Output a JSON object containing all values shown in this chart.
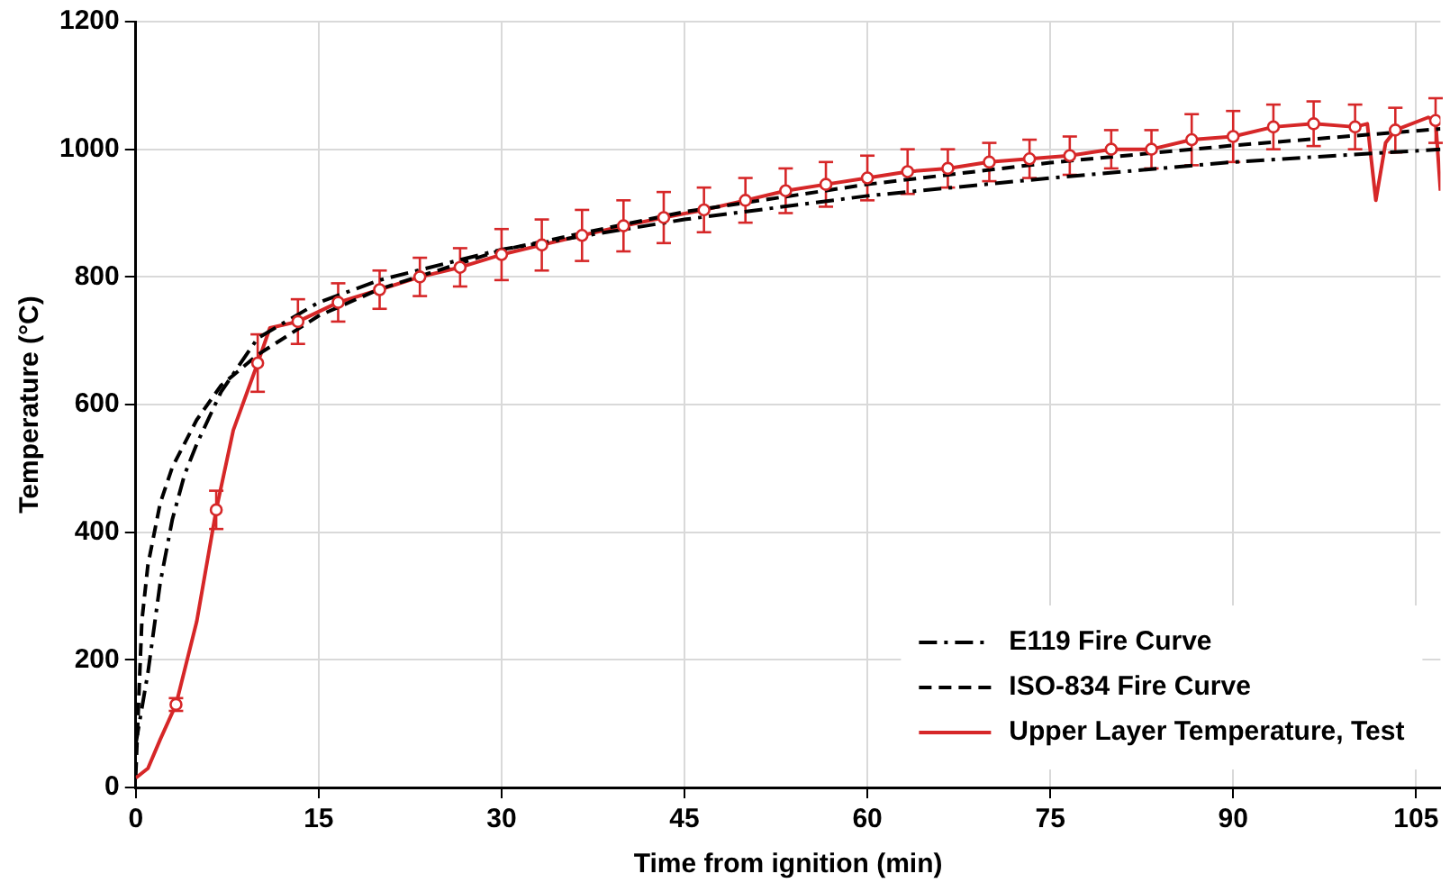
{
  "chart_data": {
    "type": "line",
    "xlabel": "Time from ignition (min)",
    "ylabel": "Temperature (°C)",
    "xlim": [
      0,
      107
    ],
    "xticks": [
      0,
      15,
      30,
      45,
      60,
      75,
      90,
      105
    ],
    "ylim": [
      0,
      1200
    ],
    "yticks": [
      0,
      200,
      400,
      600,
      800,
      1000,
      1200
    ],
    "grid": true,
    "legend": "bottom right",
    "marker": "none",
    "series": [
      {
        "name": "E119 Fire Curve",
        "color": "#000000",
        "line_style": "dashdot",
        "x": [
          0,
          1,
          2,
          3,
          4,
          5,
          7,
          10,
          15,
          20,
          30,
          45,
          60,
          75,
          90,
          107
        ],
        "values": [
          68,
          180,
          320,
          420,
          490,
          538,
          620,
          704,
          760,
          795,
          843,
          890,
          927,
          955,
          980,
          1000
        ]
      },
      {
        "name": "ISO-834 Fire Curve",
        "color": "#000000",
        "line_style": "dashed",
        "x": [
          0,
          0.5,
          1,
          2,
          3,
          5,
          7,
          10,
          15,
          20,
          30,
          45,
          60,
          75,
          90,
          107
        ],
        "values": [
          20,
          261,
          349,
          445,
          502,
          576,
          630,
          678,
          739,
          781,
          842,
          902,
          945,
          979,
          1006,
          1032
        ]
      },
      {
        "name": "Upper Layer Temperature, Test",
        "color": "#d62728",
        "line_style": "solid",
        "x": [
          0,
          1,
          2,
          3.3,
          5,
          6.6,
          8,
          10,
          11,
          13.3,
          16.6,
          20,
          23.3,
          26.6,
          30,
          33.3,
          36.6,
          40,
          43.3,
          46.6,
          50,
          53.3,
          56.6,
          60,
          63.3,
          66.6,
          70,
          73.3,
          76.6,
          80,
          83.3,
          86.6,
          90,
          93.3,
          96.6,
          100,
          101,
          101.7,
          102.5,
          103.3,
          106,
          106.6,
          107
        ],
        "values": [
          15,
          30,
          75,
          130,
          260,
          435,
          560,
          665,
          720,
          730,
          760,
          780,
          800,
          815,
          835,
          850,
          865,
          880,
          893,
          905,
          920,
          935,
          945,
          955,
          965,
          970,
          980,
          985,
          990,
          1000,
          1000,
          1015,
          1020,
          1035,
          1040,
          1035,
          1040,
          920,
          1010,
          1030,
          1050,
          1045,
          935
        ]
      },
      {
        "type": "scatter",
        "color": "#d62728",
        "marker": "circle",
        "x": [
          3.3,
          6.6,
          10,
          13.3,
          16.6,
          20,
          23.3,
          26.6,
          30,
          33.3,
          36.6,
          40,
          43.3,
          46.6,
          50,
          53.3,
          56.6,
          60,
          63.3,
          66.6,
          70,
          73.3,
          76.6,
          80,
          83.3,
          86.6,
          90,
          93.3,
          96.6,
          100,
          103.3,
          106.6
        ],
        "values": [
          130,
          435,
          665,
          730,
          760,
          780,
          800,
          815,
          835,
          850,
          865,
          880,
          893,
          905,
          920,
          935,
          945,
          955,
          965,
          970,
          980,
          985,
          990,
          1000,
          1000,
          1015,
          1020,
          1035,
          1040,
          1035,
          1030,
          1045
        ],
        "errors": [
          10,
          30,
          45,
          35,
          30,
          30,
          30,
          30,
          40,
          40,
          40,
          40,
          40,
          35,
          35,
          35,
          35,
          35,
          35,
          30,
          30,
          30,
          30,
          30,
          30,
          40,
          40,
          35,
          35,
          35,
          35,
          35
        ]
      }
    ]
  }
}
